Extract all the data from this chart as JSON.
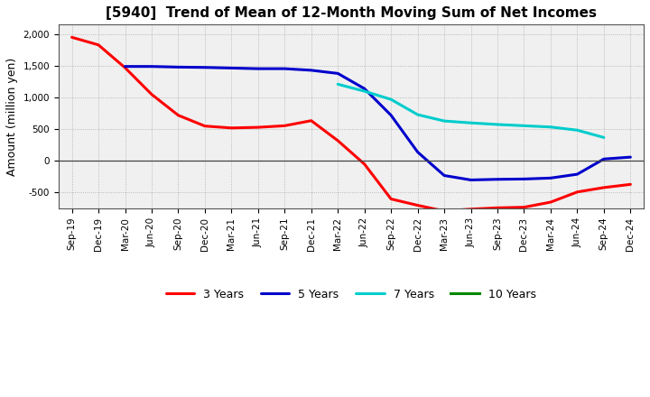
{
  "title": "[5940]  Trend of Mean of 12-Month Moving Sum of Net Incomes",
  "ylabel": "Amount (million yen)",
  "x_labels": [
    "Sep-19",
    "Dec-19",
    "Mar-20",
    "Jun-20",
    "Sep-20",
    "Dec-20",
    "Mar-21",
    "Jun-21",
    "Sep-21",
    "Dec-21",
    "Mar-22",
    "Jun-22",
    "Sep-22",
    "Dec-22",
    "Mar-23",
    "Jun-23",
    "Sep-23",
    "Dec-23",
    "Mar-24",
    "Jun-24",
    "Sep-24",
    "Dec-24"
  ],
  "ylim": [
    -750,
    2150
  ],
  "yticks": [
    -500,
    0,
    500,
    1000,
    1500,
    2000
  ],
  "series": {
    "3 Years": {
      "color": "#ff0000",
      "values": [
        1950,
        1830,
        1470,
        1050,
        720,
        550,
        520,
        530,
        555,
        635,
        320,
        -50,
        -600,
        -700,
        -790,
        -760,
        -740,
        -730,
        -650,
        -490,
        -420,
        -370
      ]
    },
    "5 Years": {
      "color": "#0000cc",
      "values": [
        null,
        null,
        1490,
        1490,
        1480,
        1475,
        1465,
        1455,
        1455,
        1430,
        1380,
        1140,
        720,
        140,
        -230,
        -300,
        -290,
        -285,
        -270,
        -210,
        30,
        60
      ]
    },
    "7 Years": {
      "color": "#00cccc",
      "values": [
        null,
        null,
        null,
        null,
        null,
        null,
        null,
        null,
        null,
        null,
        1210,
        1100,
        970,
        730,
        630,
        600,
        575,
        555,
        535,
        485,
        370,
        null
      ]
    },
    "10 Years": {
      "color": "#008800",
      "values": [
        null,
        null,
        null,
        null,
        null,
        null,
        null,
        null,
        null,
        null,
        null,
        null,
        null,
        null,
        null,
        null,
        null,
        null,
        null,
        null,
        null,
        null
      ]
    }
  },
  "background_color": "#ffffff",
  "plot_bg_color": "#f0f0f0",
  "grid_color": "#999999",
  "title_fontsize": 11,
  "label_fontsize": 9,
  "tick_fontsize": 7.5
}
